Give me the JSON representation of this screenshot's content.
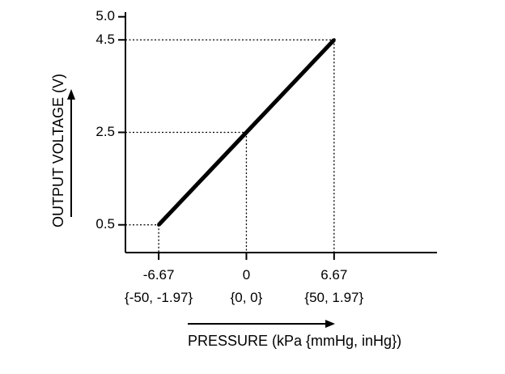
{
  "chart_data": {
    "type": "line",
    "xlabel": "PRESSURE (kPa {mmHg, inHg})",
    "ylabel": "OUTPUT VOLTAGE (V)",
    "xlim": [
      -9.2,
      14.5
    ],
    "ylim": [
      -0.1,
      5.1
    ],
    "x_ticks": [
      {
        "value": -6.67,
        "label": "-6.67",
        "sublabel": "{-50, -1.97}"
      },
      {
        "value": 0,
        "label": "0",
        "sublabel": "{0, 0}"
      },
      {
        "value": 6.67,
        "label": "6.67",
        "sublabel": "{50, 1.97}"
      }
    ],
    "y_ticks": [
      {
        "value": 0.5,
        "label": "0.5"
      },
      {
        "value": 2.5,
        "label": "2.5"
      },
      {
        "value": 4.5,
        "label": "4.5"
      },
      {
        "value": 5.0,
        "label": "5.0"
      }
    ],
    "series": [
      {
        "x": [
          -6.67,
          6.67
        ],
        "y": [
          0.5,
          4.5
        ]
      }
    ],
    "reference_lines": [
      {
        "x": -6.67,
        "y": 0.5
      },
      {
        "x": 0,
        "y": 2.5
      },
      {
        "x": 6.67,
        "y": 4.5
      }
    ],
    "grid": false,
    "colors": {
      "line": "#000000",
      "axis": "#000000"
    }
  }
}
